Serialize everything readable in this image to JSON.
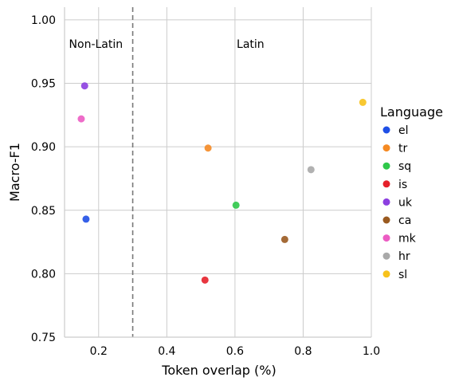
{
  "chart_data": {
    "type": "scatter",
    "xlabel": "Token overlap (%)",
    "ylabel": "Macro-F1",
    "xlim": [
      0.1,
      1.0
    ],
    "ylim": [
      0.75,
      1.01
    ],
    "xticks": [
      0.2,
      0.4,
      0.6,
      0.8,
      1.0
    ],
    "xtick_labels": [
      "0.2",
      "0.4",
      "0.6",
      "0.8",
      "1.0"
    ],
    "yticks": [
      0.75,
      0.8,
      0.85,
      0.9,
      0.95,
      1.0
    ],
    "ytick_labels": [
      "0.75",
      "0.80",
      "0.85",
      "0.90",
      "0.95",
      "1.00"
    ],
    "grid": true,
    "legend_title": "Language",
    "legend_position": "right",
    "divider": {
      "x": 0.3,
      "style": "dashed"
    },
    "annotations": [
      {
        "text": "Non-Latin",
        "x": 0.113,
        "y": 0.981
      },
      {
        "text": "Latin",
        "x": 0.605,
        "y": 0.981
      }
    ],
    "series": [
      {
        "name": "el",
        "color": "#1f4fe6",
        "points": [
          {
            "x": 0.163,
            "y": 0.843
          }
        ]
      },
      {
        "name": "tr",
        "color": "#f58a23",
        "points": [
          {
            "x": 0.521,
            "y": 0.899
          }
        ]
      },
      {
        "name": "sq",
        "color": "#2fc84a",
        "points": [
          {
            "x": 0.603,
            "y": 0.854
          }
        ]
      },
      {
        "name": "is",
        "color": "#e5202a",
        "points": [
          {
            "x": 0.512,
            "y": 0.795
          }
        ]
      },
      {
        "name": "uk",
        "color": "#8c3fe0",
        "points": [
          {
            "x": 0.159,
            "y": 0.948
          }
        ]
      },
      {
        "name": "ca",
        "color": "#9a5a20",
        "points": [
          {
            "x": 0.746,
            "y": 0.827
          }
        ]
      },
      {
        "name": "mk",
        "color": "#ec5cc3",
        "points": [
          {
            "x": 0.149,
            "y": 0.922
          }
        ]
      },
      {
        "name": "hr",
        "color": "#a9a9a9",
        "points": [
          {
            "x": 0.823,
            "y": 0.882
          }
        ]
      },
      {
        "name": "sl",
        "color": "#f7c21b",
        "points": [
          {
            "x": 0.975,
            "y": 0.935
          }
        ]
      }
    ]
  }
}
